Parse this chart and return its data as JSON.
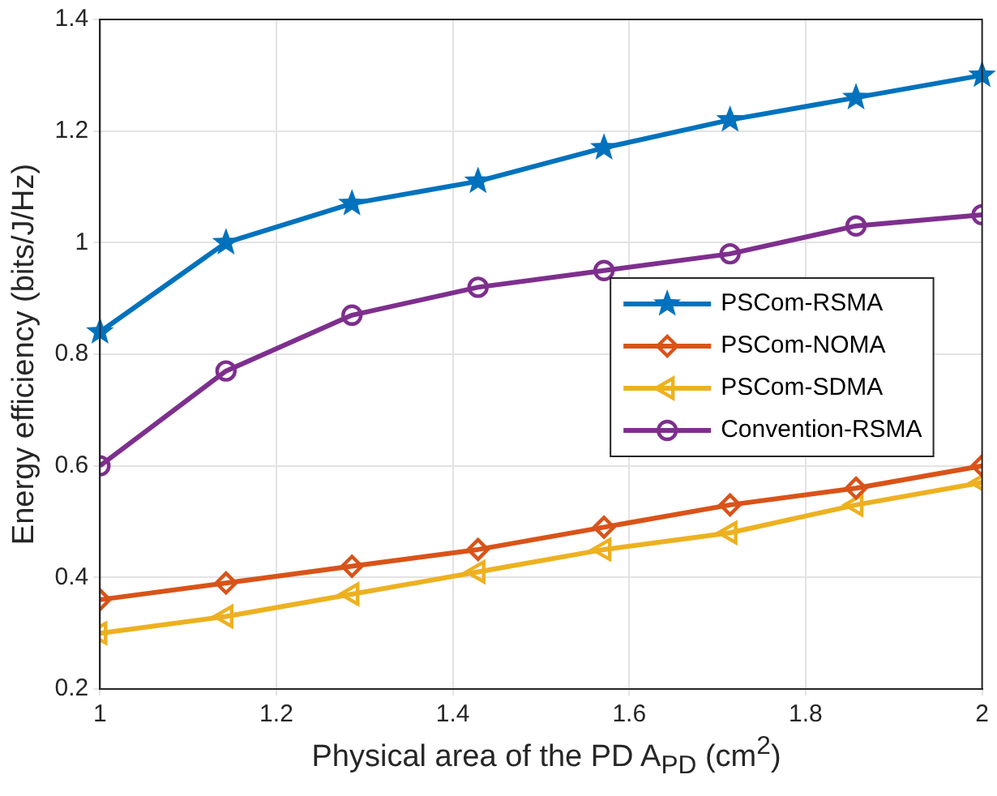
{
  "chart_data": {
    "type": "line",
    "xlabel": "Physical area of the PD A$_{PD}$ (cm$^{2}$)",
    "ylabel": "Energy efficiency (bits/J/Hz)",
    "x": [
      1,
      1.1429,
      1.2857,
      1.4286,
      1.5714,
      1.7143,
      1.8571,
      2
    ],
    "series": [
      {
        "name": "PSCom-RSMA",
        "color": "#0072bd",
        "marker": "star",
        "values": [
          0.84,
          1.0,
          1.07,
          1.11,
          1.17,
          1.22,
          1.26,
          1.3
        ]
      },
      {
        "name": "PSCom-NOMA",
        "color": "#d95319",
        "marker": "diamond",
        "values": [
          0.36,
          0.39,
          0.42,
          0.45,
          0.49,
          0.53,
          0.56,
          0.6
        ]
      },
      {
        "name": "PSCom-SDMA",
        "color": "#edb120",
        "marker": "triangle",
        "values": [
          0.3,
          0.33,
          0.37,
          0.41,
          0.45,
          0.48,
          0.53,
          0.57
        ]
      },
      {
        "name": "Convention-RSMA",
        "color": "#7e2f8e",
        "marker": "circle",
        "values": [
          0.6,
          0.77,
          0.87,
          0.92,
          0.95,
          0.98,
          1.03,
          1.05
        ]
      }
    ],
    "xlim": [
      1,
      2
    ],
    "xticks": [
      1,
      1.2,
      1.4,
      1.6,
      1.8,
      2
    ],
    "ylim": [
      0.2,
      1.4
    ],
    "yticks": [
      0.2,
      0.4,
      0.6,
      0.8,
      1,
      1.2,
      1.4
    ],
    "grid": true,
    "legend": "right",
    "line_style": "solid"
  }
}
